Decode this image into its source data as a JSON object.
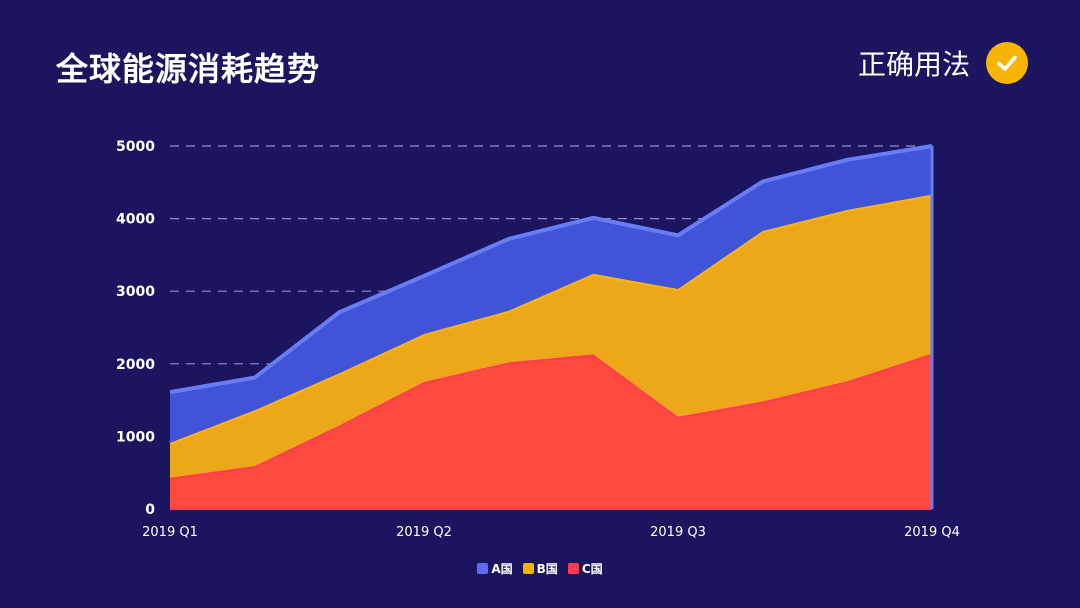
{
  "header": {
    "title": "全球能源消耗趋势",
    "badge_text": "正确用法"
  },
  "colors": {
    "background": "#1b1560",
    "check": "#f7b500"
  },
  "chart_data": {
    "type": "area",
    "stacked": true,
    "x": [
      "2019 Q1",
      "",
      "",
      "2019 Q2",
      "",
      "",
      "2019 Q3",
      "",
      "",
      "2019 Q4"
    ],
    "x_tick_labels": [
      "2019 Q1",
      "2019 Q2",
      "2019 Q3",
      "2019 Q4"
    ],
    "ylim": [
      0,
      5000
    ],
    "y_ticks": [
      0,
      1000,
      2000,
      3000,
      4000,
      5000
    ],
    "grid": "horizontal-dashed",
    "legend_position": "bottom-center",
    "series": [
      {
        "name": "C国",
        "color": "#ff4a40",
        "values": [
          430,
          590,
          1150,
          1750,
          2020,
          2130,
          1270,
          1480,
          1760,
          2140
        ]
      },
      {
        "name": "B国",
        "color": "#eda81a",
        "values": [
          480,
          770,
          720,
          660,
          710,
          1110,
          1760,
          2350,
          2360,
          2190
        ]
      },
      {
        "name": "A国",
        "color": "#3f54d6",
        "values": [
          700,
          450,
          840,
          800,
          990,
          770,
          740,
          680,
          690,
          670
        ]
      }
    ],
    "legend": [
      "A国",
      "B国",
      "C国"
    ]
  }
}
